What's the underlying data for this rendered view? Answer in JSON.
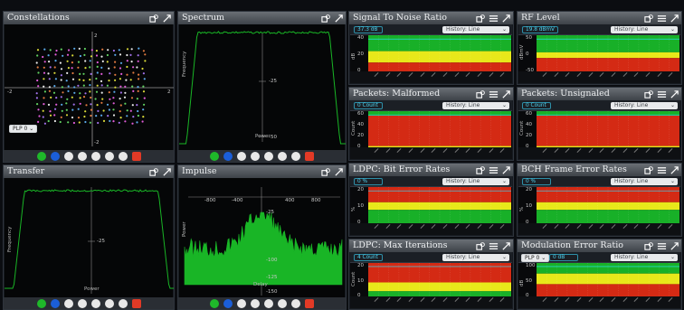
{
  "panels": {
    "constellations": {
      "title": "Constellations",
      "plp": "PLP 0",
      "ticks": {
        "top": "2",
        "bottom": "-2",
        "left": "-2",
        "right": "2"
      }
    },
    "spectrum": {
      "title": "Spectrum",
      "ylabel": "Frequency",
      "xlabel": "Power",
      "ticks": [
        "-25",
        "-50"
      ]
    },
    "transfer": {
      "title": "Transfer",
      "ylabel": "Frequency",
      "xlabel": "Power",
      "ticks": [
        "-25"
      ]
    },
    "impulse": {
      "title": "Impulse",
      "ylabel": "Power",
      "xlabel": "Delay",
      "xticks": [
        "-800",
        "-400",
        "400",
        "800"
      ],
      "yticks": [
        "-25",
        "-100",
        "-125",
        "-150"
      ]
    },
    "snr": {
      "title": "Signal To Noise Ratio",
      "value": "37.3 dB",
      "history": "History: Line",
      "unit": "dB",
      "yticks": [
        "40",
        "20",
        "0"
      ]
    },
    "rf": {
      "title": "RF Level",
      "value": "19.8 dBmV",
      "history": "History: Line",
      "unit": "dBmV",
      "yticks": [
        "50",
        "0",
        "-50"
      ]
    },
    "malformed": {
      "title": "Packets: Malformed",
      "value": "0 Count",
      "history": "History: Line",
      "unit": "Count",
      "yticks": [
        "60",
        "40",
        "20",
        "0"
      ]
    },
    "unsignaled": {
      "title": "Packets: Unsignaled",
      "value": "0 Count",
      "history": "History: Line",
      "unit": "Count",
      "yticks": [
        "60",
        "40",
        "20",
        "0"
      ]
    },
    "ldpc_ber": {
      "title": "LDPC: Bit Error Rates",
      "value": "0 %",
      "history": "History: Line",
      "unit": "%",
      "yticks": [
        "20",
        "10",
        "0"
      ]
    },
    "bch": {
      "title": "BCH Frame Error Rates",
      "value": "0 %",
      "history": "History: Line",
      "unit": "%",
      "yticks": [
        "20",
        "10",
        "0"
      ]
    },
    "ldpc_iter": {
      "title": "LDPC: Max Iterations",
      "value": "4 Count",
      "history": "History: Line",
      "unit": "Count",
      "yticks": [
        "20",
        "10",
        "0"
      ]
    },
    "mer": {
      "title": "Modulation Error Ratio",
      "value": "0 dB",
      "plp": "PLP 0",
      "history": "History: Line",
      "unit": "dB",
      "yticks": [
        "100",
        "50",
        "0"
      ]
    }
  },
  "colors": {
    "green": "#18b028",
    "yellow": "#e8e81a",
    "red": "#d42a14",
    "trace": "#19b526",
    "accent": "#4fd3f0"
  },
  "icons": [
    "settings-icon",
    "menu-icon",
    "expand-icon"
  ]
}
